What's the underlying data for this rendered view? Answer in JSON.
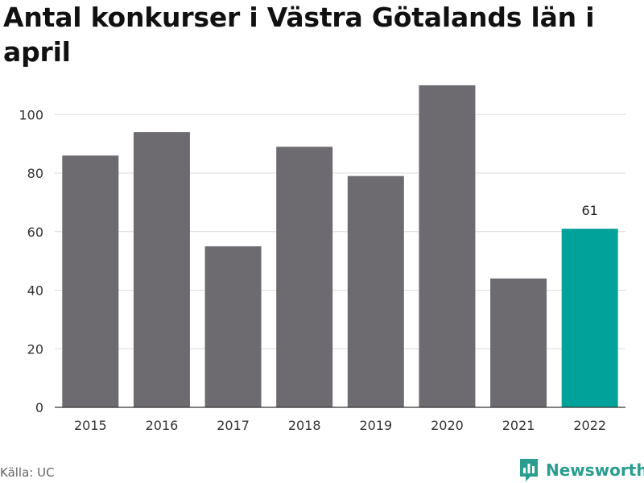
{
  "chart_data": {
    "type": "bar",
    "title": "Antal konkurser i Västra Götalands län i april",
    "categories": [
      "2015",
      "2016",
      "2017",
      "2018",
      "2019",
      "2020",
      "2021",
      "2022"
    ],
    "values": [
      86,
      94,
      55,
      89,
      79,
      110,
      44,
      61
    ],
    "yticks": [
      0,
      20,
      40,
      60,
      80,
      100
    ],
    "ylim": [
      0,
      110
    ],
    "grid": true,
    "highlight": {
      "category": "2022",
      "label": "61"
    },
    "colors": {
      "bar": "#6d6b70",
      "highlight": "#00a29a",
      "grid": "#dcdcdc"
    }
  },
  "source": "Källa: UC",
  "brand": {
    "name": "Newsworthy",
    "icon": "newsworthy-logo-icon"
  }
}
